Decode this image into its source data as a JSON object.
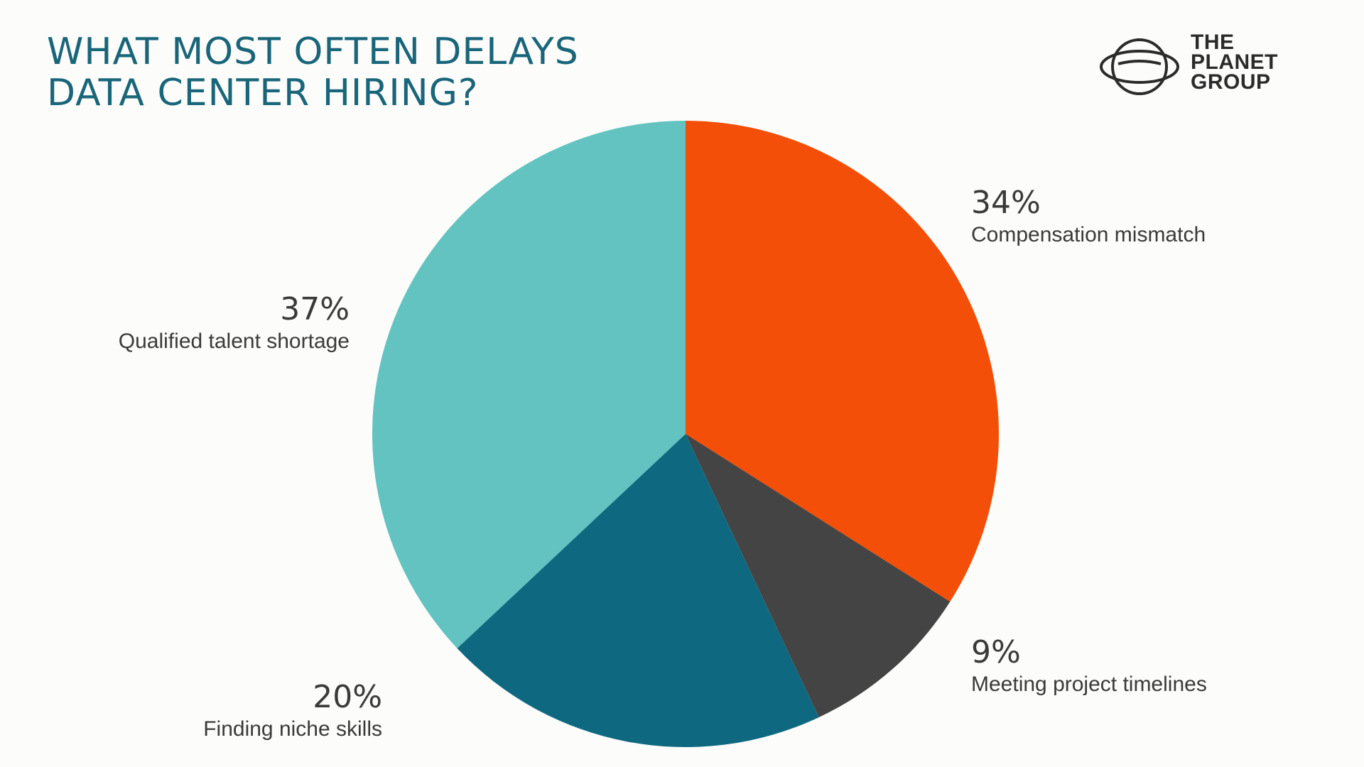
{
  "title_lines": [
    "WHAT MOST OFTEN DELAYS",
    "DATA CENTER HIRING?"
  ],
  "logo": {
    "lines": [
      "THE",
      "PLANET",
      "GROUP"
    ],
    "color": "#2b2b2b"
  },
  "chart_data": {
    "type": "pie",
    "title": "WHAT MOST OFTEN DELAYS DATA CENTER HIRING?",
    "slices": [
      {
        "label": "Compensation mismatch",
        "value": 34,
        "display": "34%",
        "color": "#f44f08"
      },
      {
        "label": "Meeting project timelines",
        "value": 9,
        "display": "9%",
        "color": "#444444"
      },
      {
        "label": "Finding niche skills",
        "value": 20,
        "display": "20%",
        "color": "#0e6980"
      },
      {
        "label": "Qualified talent shortage",
        "value": 37,
        "display": "37%",
        "color": "#62c3c0"
      }
    ],
    "legend": "none",
    "start_angle": "12 o'clock",
    "direction": "clockwise"
  }
}
